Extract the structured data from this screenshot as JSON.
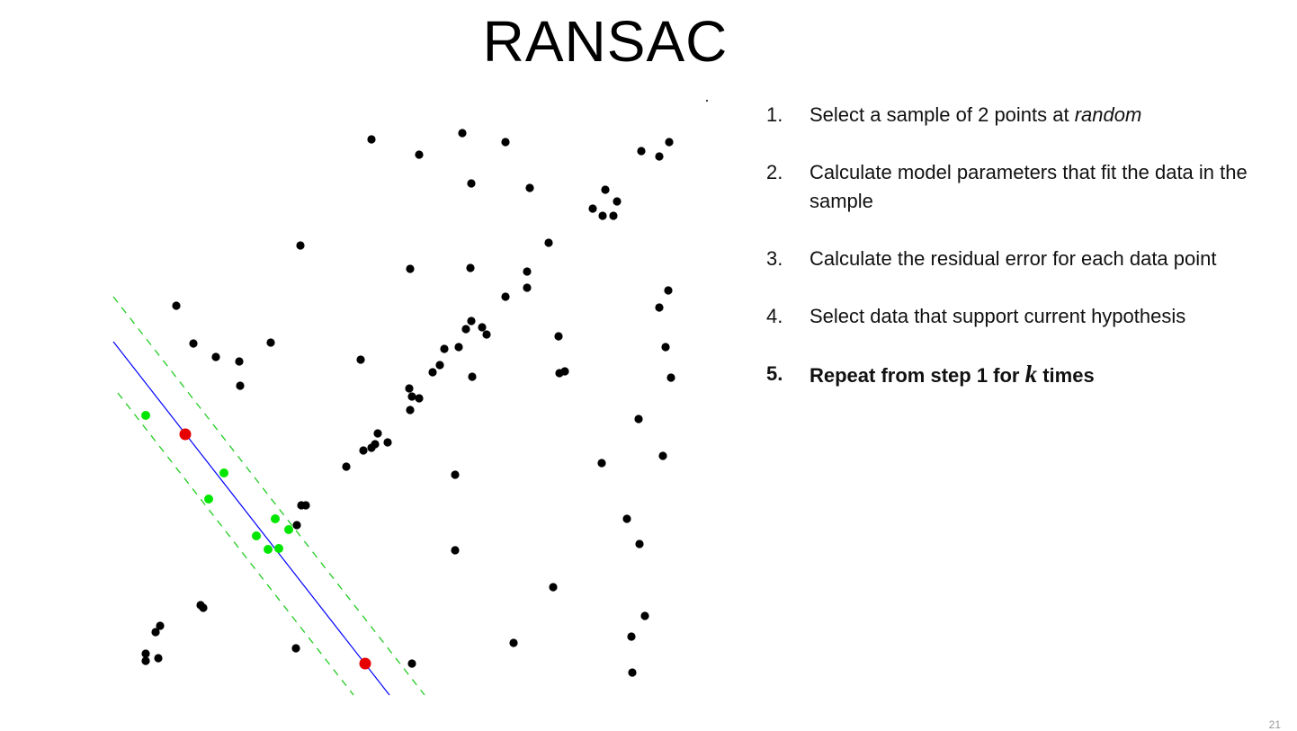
{
  "title": "RANSAC",
  "steps": [
    {
      "number": "1.",
      "text_before": "Select a sample of 2 points at ",
      "emphasis": "random",
      "text_after": "",
      "bold": false
    },
    {
      "number": "2.",
      "text": "Calculate model parameters that fit the data in the sample",
      "bold": false
    },
    {
      "number": "3.",
      "text": "Calculate the residual error for each data point",
      "bold": false
    },
    {
      "number": "4.",
      "text": "Select data that support current hypothesis",
      "bold": false
    },
    {
      "number": "5.",
      "text_before": "Repeat from step 1 for ",
      "variable": "k",
      "text_after": " times",
      "bold": true
    }
  ],
  "colors": {
    "outlier": "#000000",
    "inlier": "#00e600",
    "sample": "#e60000",
    "model_line": "#0000ff",
    "threshold_lines": "#22cc22"
  },
  "page_number": "21"
}
